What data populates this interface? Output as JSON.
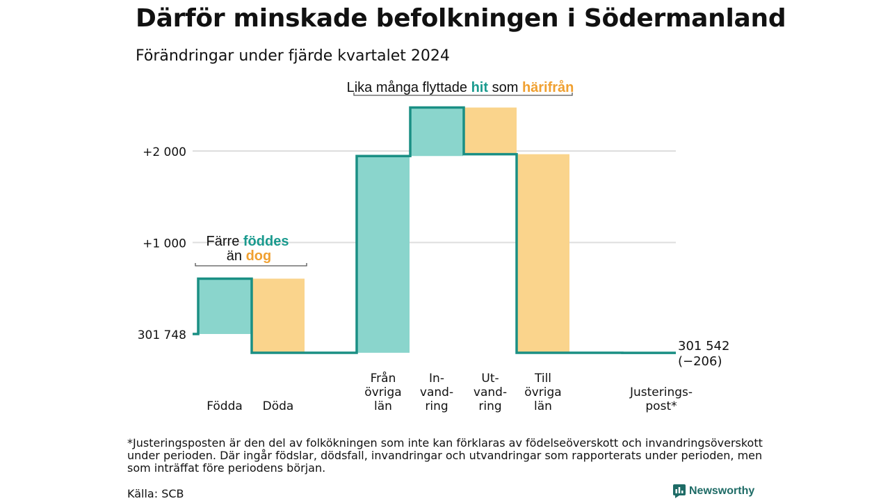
{
  "title": "Därför minskade befolkningen i Södermanland",
  "subtitle": "Förändringar under fjärde kvartalet 2024",
  "colors": {
    "inflow": "#8ad5cc",
    "outflow": "#fad48c",
    "line": "#1a8f84",
    "inflow_text": "#1a9a8e",
    "outflow_text": "#f0a030",
    "grid": "#dddddd"
  },
  "annotations": {
    "births": {
      "prefix": "Färre",
      "hl1": "föddes",
      "line2_prefix": "än",
      "hl2": "dog"
    },
    "migration": {
      "prefix": "Lika många flyttade",
      "hl1": "hit",
      "middle": "som",
      "hl2": "härifrån"
    }
  },
  "chart_data": {
    "type": "waterfall",
    "y_axis_start_label": "301 748",
    "y_tick_labels": [
      "+1 000",
      "+2 000"
    ],
    "y_ticks": [
      1000,
      2000
    ],
    "ylim": [
      -400,
      2700
    ],
    "start_value": 301748,
    "end_label": "301 542",
    "end_change": "(−206)",
    "categories": [
      {
        "lines": [
          "Födda"
        ],
        "value": 605,
        "kind": "in"
      },
      {
        "lines": [
          "Döda"
        ],
        "value": -810,
        "kind": "out"
      },
      {
        "lines": [
          "Från",
          "övriga",
          "län"
        ],
        "value": 2150,
        "kind": "in"
      },
      {
        "lines": [
          "In-",
          "vand-",
          "ring"
        ],
        "value": 530,
        "kind": "in"
      },
      {
        "lines": [
          "Ut-",
          "vand-",
          "ring"
        ],
        "value": -510,
        "kind": "out"
      },
      {
        "lines": [
          "Till",
          "övriga",
          "län"
        ],
        "value": -2170,
        "kind": "out"
      },
      {
        "lines": [
          "Justerings-",
          "post*"
        ],
        "value": -1,
        "kind": "adj"
      }
    ]
  },
  "footnote": "*Justeringsposten är den del av folkökningen som inte kan förklaras av födelseöverskott och invandringsöverskott under perioden. Där ingår födslar, dödsfall, invandringar och utvandringar som rapporterats under perioden, men som inträffat före periodens början.",
  "source": "Källa: SCB",
  "brand": "Newsworthy"
}
